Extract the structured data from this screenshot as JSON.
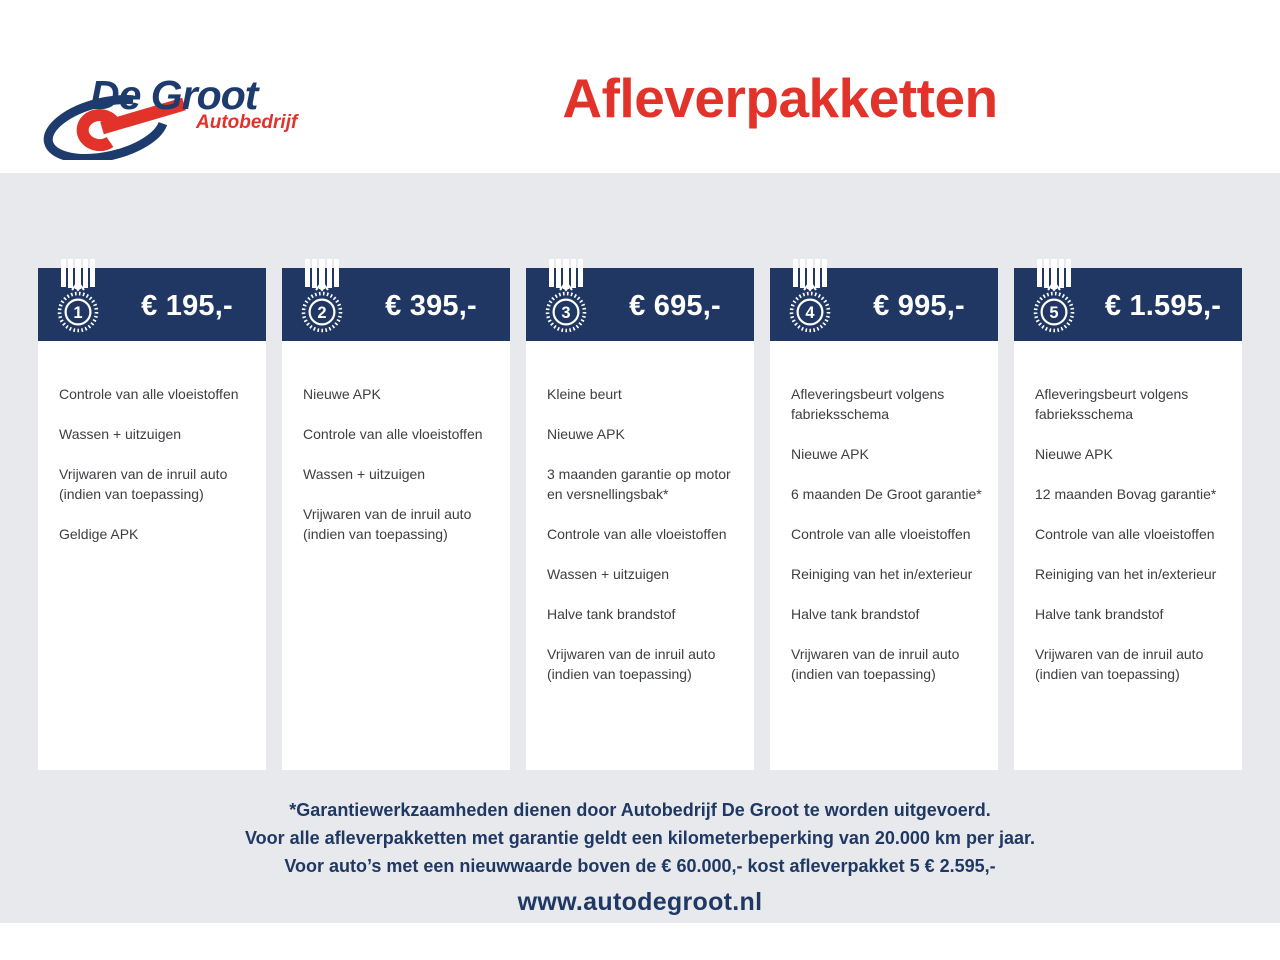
{
  "brand": {
    "name": "De Groot",
    "tagline": "Autobedrijf"
  },
  "page_title": "Afleverpakketten",
  "packages": [
    {
      "number": "1",
      "price": "€ 195,-",
      "items": [
        "Controle van alle vloeistoffen",
        "Wassen + uitzuigen",
        "Vrijwaren van de inruil auto (indien van toepassing)",
        "Geldige APK"
      ]
    },
    {
      "number": "2",
      "price": "€ 395,-",
      "items": [
        "Nieuwe APK",
        "Controle van alle vloeistoffen",
        "Wassen + uitzuigen",
        "Vrijwaren van de inruil auto (indien van toepassing)"
      ]
    },
    {
      "number": "3",
      "price": "€ 695,-",
      "items": [
        "Kleine beurt",
        "Nieuwe APK",
        "3 maanden garantie op motor en versnellingsbak*",
        "Controle van alle vloeistoffen",
        "Wassen + uitzuigen",
        "Halve tank brandstof",
        "Vrijwaren van de inruil auto (indien van toepassing)"
      ]
    },
    {
      "number": "4",
      "price": "€ 995,-",
      "items": [
        "Afleveringsbeurt volgens fabrieksschema",
        "Nieuwe APK",
        "6 maanden De Groot garantie*",
        "Controle van alle vloeistoffen",
        "Reiniging van het in/exterieur",
        "Halve tank brandstof",
        "Vrijwaren van de inruil auto (indien van toepassing)"
      ]
    },
    {
      "number": "5",
      "price": "€ 1.595,-",
      "items": [
        "Afleveringsbeurt volgens fabrieksschema",
        "Nieuwe APK",
        "12 maanden Bovag garantie*",
        "Controle van alle vloeistoffen",
        "Reiniging van het in/exterieur",
        "Halve tank brandstof",
        "Vrijwaren van de inruil auto (indien van toepassing)"
      ]
    }
  ],
  "footnotes": [
    "*Garantiewerkzaamheden dienen door Autobedrijf De Groot te worden uitgevoerd.",
    "Voor alle afleverpakketten met garantie geldt een kilometerbeperking van 20.000 km per jaar.",
    "Voor auto’s met een nieuwwaarde boven de € 60.000,- kost afleverpakket 5 € 2.595,-"
  ],
  "website": "www.autodegroot.nl",
  "colors": {
    "navy": "#203763",
    "red": "#e2332a",
    "background_gray": "#e8e9ed",
    "body_text": "#3d3e40",
    "footer_navy": "#1f3864"
  }
}
